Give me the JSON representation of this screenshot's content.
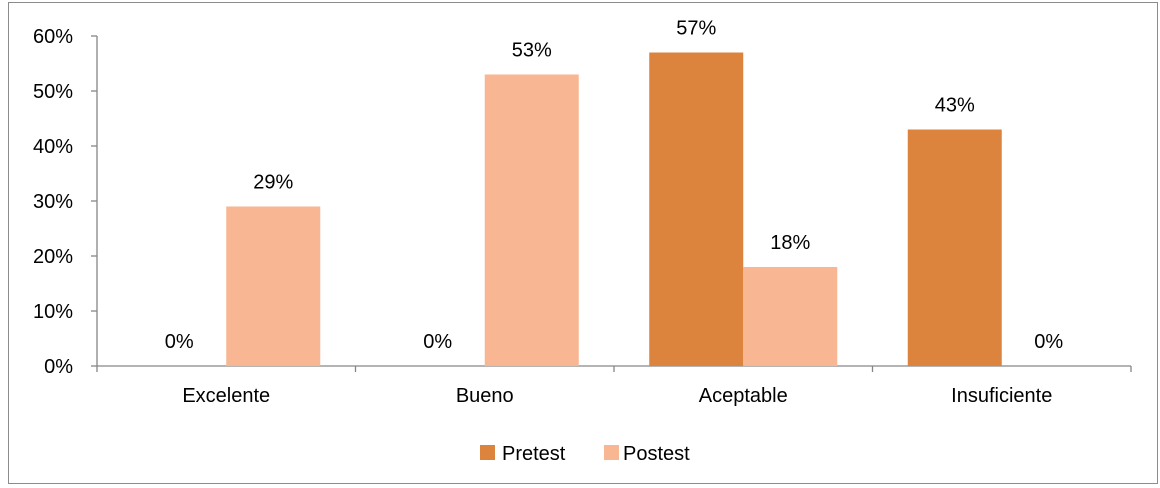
{
  "chart_data": {
    "type": "bar",
    "categories": [
      "Excelente",
      "Bueno",
      "Aceptable",
      "Insuficiente"
    ],
    "series": [
      {
        "name": "Pretest",
        "values": [
          0,
          0,
          57,
          43
        ],
        "color": "#dc843e"
      },
      {
        "name": "Postest",
        "values": [
          29,
          53,
          18,
          0
        ],
        "color": "#f8b692"
      }
    ],
    "data_labels": [
      [
        "0%",
        "0%",
        "57%",
        "43%"
      ],
      [
        "29%",
        "53%",
        "18%",
        "0%"
      ]
    ],
    "yticks": [
      "0%",
      "10%",
      "20%",
      "30%",
      "40%",
      "50%",
      "60%"
    ],
    "ylim": [
      0,
      60
    ],
    "grid": false,
    "legend": "bottom-center"
  }
}
